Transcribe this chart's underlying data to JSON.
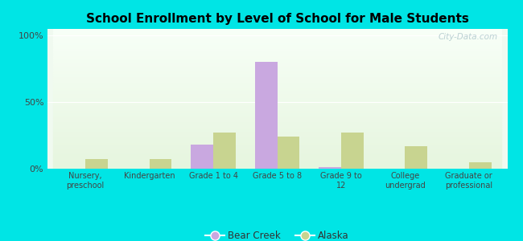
{
  "title": "School Enrollment by Level of School for Male Students",
  "categories": [
    "Nursery,\npreschool",
    "Kindergarten",
    "Grade 1 to 4",
    "Grade 5 to 8",
    "Grade 9 to\n12",
    "College\nundergrad",
    "Graduate or\nprofessional"
  ],
  "bear_creek": [
    0,
    0,
    18,
    80,
    1,
    0,
    0
  ],
  "alaska": [
    7,
    7,
    27,
    24,
    27,
    17,
    5
  ],
  "bear_creek_color": "#c9a8e0",
  "alaska_color": "#c8d490",
  "background_outer": "#00e5e5",
  "title_fontsize": 11,
  "yticks": [
    0,
    50,
    100
  ],
  "ytick_labels": [
    "0%",
    "50%",
    "100%"
  ],
  "ylim": [
    0,
    105
  ],
  "watermark": "City-Data.com"
}
